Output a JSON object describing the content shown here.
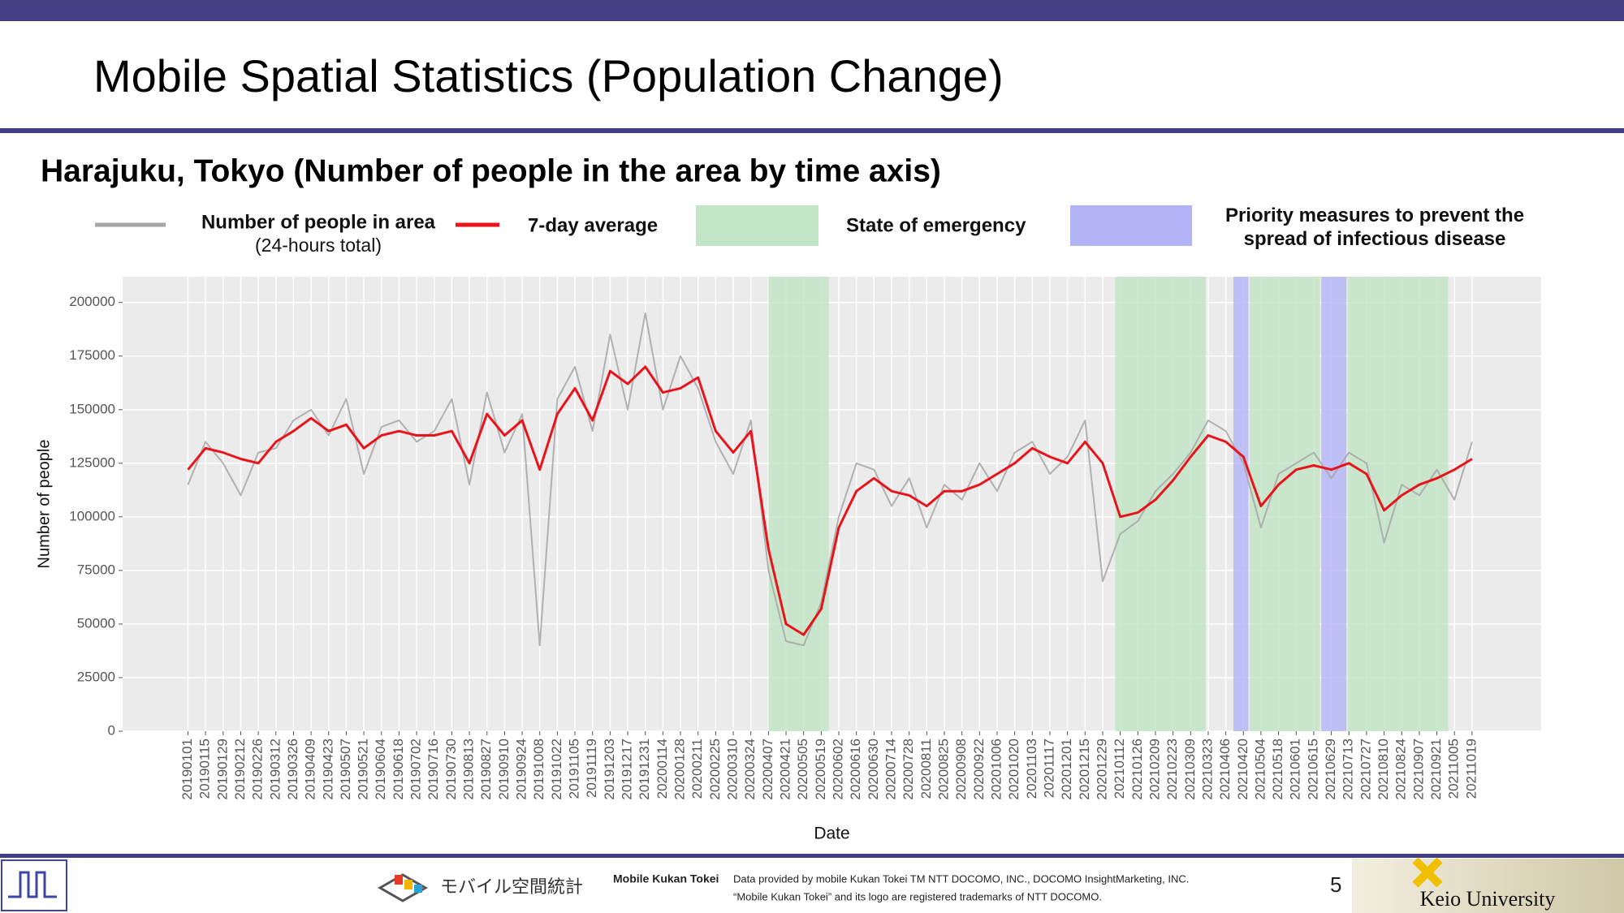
{
  "header": {
    "title": "Mobile Spatial Statistics (Population Change)"
  },
  "chart_data": {
    "type": "line",
    "title": "Harajuku, Tokyo (Number of people in the area by time axis)",
    "xlabel": "Date",
    "ylabel": "Number of people",
    "x": [
      "20190101",
      "20190115",
      "20190129",
      "20190212",
      "20190226",
      "20190312",
      "20190326",
      "20190409",
      "20190423",
      "20190507",
      "20190521",
      "20190604",
      "20190618",
      "20190702",
      "20190716",
      "20190730",
      "20190813",
      "20190827",
      "20190910",
      "20190924",
      "20191008",
      "20191022",
      "20191105",
      "20191119",
      "20191203",
      "20191217",
      "20191231",
      "20200114",
      "20200128",
      "20200211",
      "20200225",
      "20200310",
      "20200324",
      "20200407",
      "20200421",
      "20200505",
      "20200519",
      "20200602",
      "20200616",
      "20200630",
      "20200714",
      "20200728",
      "20200811",
      "20200825",
      "20200908",
      "20200922",
      "20201006",
      "20201020",
      "20201103",
      "20201117",
      "20201201",
      "20201215",
      "20201229",
      "20210112",
      "20210126",
      "20210209",
      "20210223",
      "20210309",
      "20210323",
      "20210406",
      "20210420",
      "20210504",
      "20210518",
      "20210601",
      "20210615",
      "20210629",
      "20210713",
      "20210727",
      "20210810",
      "20210824",
      "20210907",
      "20210921",
      "20211005",
      "20211019"
    ],
    "xlim": [
      "20181110",
      "20211213"
    ],
    "ylim": [
      0,
      212000
    ],
    "yticks": [
      0,
      25000,
      50000,
      75000,
      100000,
      125000,
      150000,
      175000,
      200000
    ],
    "grid": true,
    "series": [
      {
        "name": "Number of people in area",
        "subname": "(24-hours total)",
        "color": "#a6a6a6",
        "values": [
          115000,
          135000,
          125000,
          110000,
          130000,
          132000,
          145000,
          150000,
          138000,
          155000,
          120000,
          142000,
          145000,
          135000,
          140000,
          155000,
          115000,
          158000,
          130000,
          148000,
          40000,
          155000,
          170000,
          140000,
          185000,
          150000,
          195000,
          150000,
          175000,
          160000,
          135000,
          120000,
          145000,
          75000,
          42000,
          40000,
          60000,
          100000,
          125000,
          122000,
          105000,
          118000,
          95000,
          115000,
          108000,
          125000,
          112000,
          130000,
          135000,
          120000,
          128000,
          145000,
          70000,
          92000,
          98000,
          112000,
          120000,
          130000,
          145000,
          140000,
          125000,
          95000,
          120000,
          125000,
          130000,
          118000,
          130000,
          125000,
          88000,
          115000,
          110000,
          122000,
          108000,
          135000
        ]
      },
      {
        "name": "7-day average",
        "color": "#e8141b",
        "values": [
          122000,
          132000,
          130000,
          127000,
          125000,
          135000,
          140000,
          146000,
          140000,
          143000,
          132000,
          138000,
          140000,
          138000,
          138000,
          140000,
          125000,
          148000,
          138000,
          145000,
          122000,
          148000,
          160000,
          145000,
          168000,
          162000,
          170000,
          158000,
          160000,
          165000,
          140000,
          130000,
          140000,
          85000,
          50000,
          45000,
          57000,
          95000,
          112000,
          118000,
          112000,
          110000,
          105000,
          112000,
          112000,
          115000,
          120000,
          125000,
          132000,
          128000,
          125000,
          135000,
          125000,
          100000,
          102000,
          108000,
          117000,
          128000,
          138000,
          135000,
          128000,
          105000,
          115000,
          122000,
          124000,
          122000,
          125000,
          120000,
          103000,
          110000,
          115000,
          118000,
          122000,
          127000
        ]
      }
    ],
    "spans": [
      {
        "name_lines": [
          "State of emergency"
        ],
        "color": "#c1e5c5",
        "ranges": [
          [
            "20200407",
            "20200525"
          ],
          [
            "20210108",
            "20210321"
          ],
          [
            "20210425",
            "20210620"
          ],
          [
            "20210712",
            "20210930"
          ]
        ]
      },
      {
        "name_lines": [
          "Priority measures to prevent the",
          "spread of infectious disease"
        ],
        "color": "#b3b4f8",
        "ranges": [
          [
            "20210412",
            "20210424"
          ],
          [
            "20210621",
            "20210711"
          ]
        ]
      }
    ]
  },
  "footer": {
    "logo_text": "モバイル空間統計",
    "brand": "Mobile Kukan Tokei",
    "credit_lines": [
      "Data provided by mobile Kukan Tokei TM NTT DOCOMO, INC., DOCOMO InsightMarketing, INC.",
      "“Mobile Kukan Tokei” and its logo are registered trademarks of NTT DOCOMO."
    ],
    "page": "5",
    "university": "Keio University"
  }
}
